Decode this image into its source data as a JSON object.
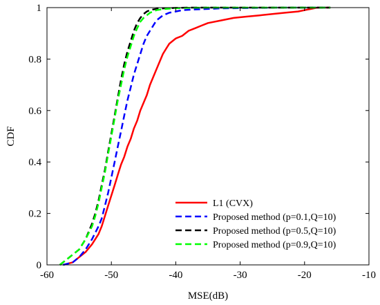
{
  "chart_data": {
    "type": "line",
    "title": "",
    "xlabel": "MSE(dB)",
    "ylabel": "CDF",
    "xlim": [
      -60,
      -10
    ],
    "ylim": [
      0,
      1
    ],
    "xticks": [
      -60,
      -50,
      -40,
      -30,
      -20,
      -10
    ],
    "yticks": [
      0,
      0.2,
      0.4,
      0.6,
      0.8,
      1
    ],
    "xtick_labels": [
      "-60",
      "-50",
      "-40",
      "-30",
      "-20",
      "-10"
    ],
    "ytick_labels": [
      "0",
      "0.2",
      "0.4",
      "0.6",
      "0.8",
      "1"
    ],
    "grid": false,
    "legend_position": "bottom-right",
    "series": [
      {
        "name": "L1 (CVX)",
        "color": "#ff0000",
        "style": "solid",
        "x": [
          -57.5,
          -56,
          -55,
          -54,
          -53,
          -52,
          -51.5,
          -51,
          -50.5,
          -50,
          -49.5,
          -49,
          -48.5,
          -48,
          -47.5,
          -47,
          -46.5,
          -46,
          -45.5,
          -45,
          -44.5,
          -44,
          -43.5,
          -43,
          -42.5,
          -42,
          -41.5,
          -41,
          -40.5,
          -40,
          -39,
          -38,
          -37,
          -36,
          -35,
          -33,
          -31,
          -29,
          -27,
          -25,
          -23,
          -21,
          -20,
          -19,
          -18,
          -17,
          -16
        ],
        "y": [
          0,
          0.01,
          0.03,
          0.05,
          0.08,
          0.12,
          0.15,
          0.19,
          0.23,
          0.27,
          0.31,
          0.35,
          0.39,
          0.42,
          0.46,
          0.49,
          0.53,
          0.56,
          0.6,
          0.63,
          0.66,
          0.7,
          0.73,
          0.76,
          0.79,
          0.82,
          0.84,
          0.86,
          0.87,
          0.88,
          0.89,
          0.91,
          0.92,
          0.93,
          0.94,
          0.95,
          0.96,
          0.965,
          0.97,
          0.975,
          0.98,
          0.985,
          0.99,
          0.995,
          1,
          1,
          1
        ]
      },
      {
        "name": "Proposed method (p=0.1,Q=10)",
        "color": "#0000ff",
        "style": "dashed",
        "x": [
          -57.5,
          -56,
          -55,
          -54,
          -53,
          -52,
          -51.5,
          -51,
          -50.5,
          -50,
          -49.5,
          -49,
          -48.5,
          -48,
          -47.5,
          -47,
          -46.5,
          -46,
          -45.5,
          -45,
          -44.5,
          -44,
          -43.5,
          -43,
          -42.5,
          -42,
          -41.5,
          -41,
          -40,
          -39,
          -37,
          -35,
          -33,
          -30,
          -27,
          -24,
          -21,
          -18,
          -16
        ],
        "y": [
          0,
          0.01,
          0.03,
          0.06,
          0.1,
          0.15,
          0.18,
          0.23,
          0.28,
          0.34,
          0.4,
          0.46,
          0.52,
          0.58,
          0.64,
          0.69,
          0.74,
          0.78,
          0.82,
          0.86,
          0.89,
          0.91,
          0.93,
          0.95,
          0.96,
          0.97,
          0.975,
          0.98,
          0.985,
          0.99,
          0.993,
          0.995,
          0.997,
          0.998,
          0.999,
          1,
          1,
          1,
          1
        ]
      },
      {
        "name": "Proposed method (p=0.5,Q=10)",
        "color": "#000000",
        "style": "dashed",
        "x": [
          -58,
          -57,
          -56,
          -55,
          -54,
          -53,
          -52.5,
          -52,
          -51.5,
          -51,
          -50.5,
          -50,
          -49.5,
          -49,
          -48.5,
          -48,
          -47.5,
          -47,
          -46.5,
          -46,
          -45.5,
          -45,
          -44.5,
          -44,
          -43.5,
          -43,
          -42,
          -41,
          -40,
          -38,
          -35,
          -30,
          -25,
          -20,
          -16
        ],
        "y": [
          0,
          0.02,
          0.04,
          0.06,
          0.1,
          0.16,
          0.2,
          0.25,
          0.31,
          0.37,
          0.44,
          0.51,
          0.58,
          0.65,
          0.72,
          0.78,
          0.83,
          0.87,
          0.91,
          0.94,
          0.96,
          0.975,
          0.985,
          0.99,
          0.993,
          0.995,
          0.997,
          0.998,
          0.999,
          1,
          1,
          1,
          1,
          1,
          1
        ]
      },
      {
        "name": "Proposed method (p=0.9,Q=10)",
        "color": "#00ff00",
        "style": "dashed",
        "x": [
          -58,
          -57,
          -56,
          -55,
          -54,
          -53,
          -52.5,
          -52,
          -51.5,
          -51,
          -50.5,
          -50,
          -49.5,
          -49,
          -48.5,
          -48,
          -47.5,
          -47,
          -46.5,
          -46,
          -45.5,
          -45,
          -44.5,
          -44,
          -43.5,
          -43,
          -42,
          -41,
          -40,
          -38,
          -35,
          -30,
          -25,
          -20,
          -16
        ],
        "y": [
          0,
          0.02,
          0.04,
          0.06,
          0.1,
          0.15,
          0.19,
          0.24,
          0.3,
          0.36,
          0.43,
          0.5,
          0.57,
          0.64,
          0.7,
          0.76,
          0.81,
          0.85,
          0.89,
          0.92,
          0.945,
          0.96,
          0.97,
          0.98,
          0.985,
          0.99,
          0.994,
          0.996,
          0.998,
          0.999,
          1,
          1,
          1,
          1,
          1
        ]
      }
    ]
  }
}
